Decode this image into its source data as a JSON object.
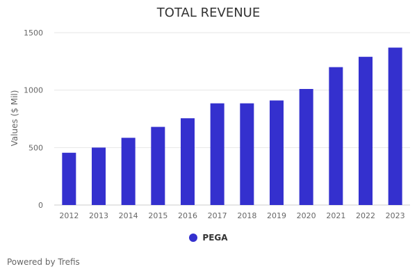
{
  "chart_data": {
    "type": "bar",
    "title": "TOTAL REVENUE",
    "xlabel": "",
    "ylabel": "Values ($ Mil)",
    "categories": [
      "2012",
      "2013",
      "2014",
      "2015",
      "2016",
      "2017",
      "2018",
      "2019",
      "2020",
      "2021",
      "2022",
      "2023"
    ],
    "series": [
      {
        "name": "PEGA",
        "color": "#3430CE",
        "values": [
          455,
          500,
          585,
          680,
          755,
          885,
          885,
          910,
          1010,
          1200,
          1290,
          1370
        ]
      }
    ],
    "ylim": [
      0,
      1500
    ],
    "yticks": [
      0,
      500,
      1000,
      1500
    ],
    "grid": true,
    "legend_position": "bottom-center"
  },
  "legend": {
    "label": "PEGA",
    "color": "#3430CE"
  },
  "credit": "Powered by Trefis"
}
